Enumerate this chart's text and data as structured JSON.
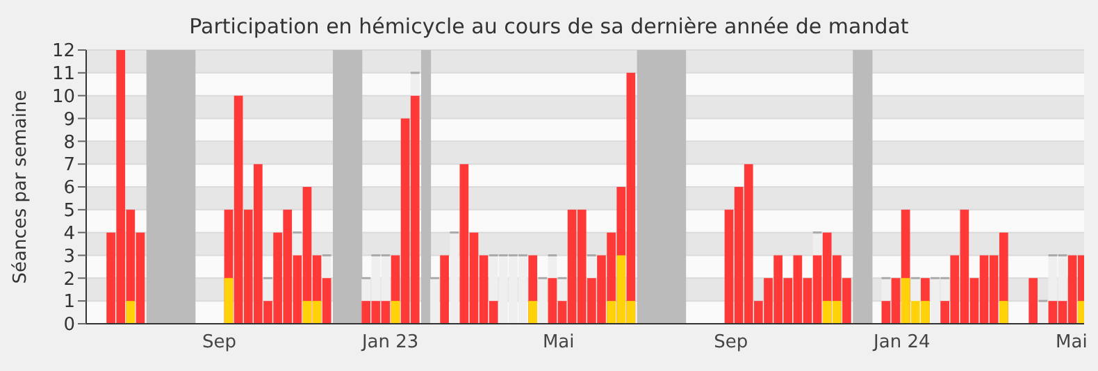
{
  "chart_data": {
    "type": "bar",
    "title": "Participation en hémicycle au cours de sa dernière année de mandat",
    "ylabel": "Séances par semaine",
    "x": [
      "2022-06-16",
      "2022-06-23",
      "2022-06-30",
      "2022-07-07",
      "2022-07-14",
      "2022-07-21",
      "2022-07-28",
      "2022-08-04",
      "2022-08-11",
      "2022-08-18",
      "2022-08-25",
      "2022-09-01",
      "2022-09-08",
      "2022-09-15",
      "2022-09-22",
      "2022-09-29",
      "2022-10-06",
      "2022-10-13",
      "2022-10-20",
      "2022-10-27",
      "2022-11-03",
      "2022-11-10",
      "2022-11-17",
      "2022-11-24",
      "2022-12-01",
      "2022-12-08",
      "2022-12-15",
      "2022-12-22",
      "2022-12-29",
      "2023-01-05",
      "2023-01-12",
      "2023-01-19",
      "2023-01-26",
      "2023-02-02",
      "2023-02-09",
      "2023-02-16",
      "2023-02-23",
      "2023-03-02",
      "2023-03-09",
      "2023-03-16",
      "2023-03-23",
      "2023-03-30",
      "2023-04-06",
      "2023-04-13",
      "2023-04-20",
      "2023-04-27",
      "2023-05-04",
      "2023-05-11",
      "2023-05-18",
      "2023-05-25",
      "2023-06-01",
      "2023-06-08",
      "2023-06-15",
      "2023-06-22",
      "2023-06-29",
      "2023-07-06",
      "2023-07-13",
      "2023-07-20",
      "2023-07-27",
      "2023-08-03",
      "2023-08-10",
      "2023-08-17",
      "2023-08-24",
      "2023-08-31",
      "2023-09-07",
      "2023-09-14",
      "2023-09-21",
      "2023-09-28",
      "2023-10-05",
      "2023-10-12",
      "2023-10-19",
      "2023-10-26",
      "2023-11-02",
      "2023-11-09",
      "2023-11-16",
      "2023-11-23",
      "2023-11-30",
      "2023-12-07",
      "2023-12-14",
      "2023-12-21",
      "2023-12-28",
      "2024-01-04",
      "2024-01-11",
      "2024-01-18",
      "2024-01-25",
      "2024-02-01",
      "2024-02-08",
      "2024-02-15",
      "2024-02-22",
      "2024-02-29",
      "2024-03-07",
      "2024-03-14",
      "2024-03-21",
      "2024-03-28",
      "2024-04-04",
      "2024-04-11",
      "2024-04-18",
      "2024-04-25",
      "2024-05-02",
      "2024-05-09"
    ],
    "series": [
      {
        "color": "#efefef",
        "values": [
          null,
          null,
          null,
          null,
          null,
          null,
          null,
          null,
          null,
          null,
          null,
          null,
          null,
          null,
          null,
          null,
          2,
          null,
          null,
          4,
          null,
          null,
          3,
          null,
          null,
          null,
          2,
          3,
          3,
          null,
          null,
          11,
          null,
          2,
          null,
          4,
          null,
          null,
          null,
          3,
          3,
          3,
          3,
          null,
          2,
          3,
          2,
          null,
          null,
          3,
          null,
          null,
          null,
          null,
          null,
          null,
          null,
          null,
          null,
          null,
          null,
          null,
          null,
          null,
          null,
          null,
          null,
          null,
          null,
          null,
          null,
          null,
          4,
          null,
          null,
          null,
          null,
          null,
          null,
          2,
          null,
          null,
          2,
          null,
          2,
          2,
          null,
          null,
          null,
          null,
          null,
          null,
          null,
          null,
          null,
          1,
          3,
          3,
          null,
          null
        ]
      },
      {
        "color": "#ff3838",
        "values": [
          4,
          12,
          5,
          4,
          null,
          null,
          null,
          null,
          null,
          null,
          null,
          null,
          5,
          10,
          5,
          7,
          1,
          4,
          5,
          3,
          6,
          3,
          2,
          null,
          null,
          null,
          1,
          1,
          1,
          3,
          9,
          10,
          null,
          null,
          3,
          null,
          7,
          4,
          3,
          1,
          null,
          null,
          null,
          3,
          null,
          2,
          1,
          5,
          5,
          2,
          3,
          4,
          6,
          11,
          null,
          null,
          null,
          null,
          null,
          null,
          null,
          null,
          null,
          5,
          6,
          7,
          1,
          2,
          3,
          2,
          3,
          2,
          3,
          4,
          3,
          2,
          null,
          null,
          null,
          1,
          2,
          5,
          null,
          2,
          null,
          1,
          3,
          5,
          2,
          3,
          3,
          4,
          null,
          null,
          2,
          null,
          1,
          1,
          3,
          3
        ]
      },
      {
        "color": "#ffd20a",
        "values": [
          null,
          null,
          1,
          null,
          null,
          null,
          null,
          null,
          null,
          null,
          null,
          null,
          2,
          null,
          null,
          null,
          null,
          null,
          null,
          null,
          1,
          1,
          null,
          null,
          null,
          null,
          null,
          null,
          null,
          1,
          null,
          null,
          null,
          null,
          null,
          null,
          null,
          null,
          null,
          null,
          null,
          null,
          null,
          1,
          null,
          null,
          null,
          null,
          null,
          null,
          null,
          1,
          3,
          1,
          null,
          null,
          null,
          null,
          null,
          null,
          null,
          null,
          null,
          null,
          null,
          null,
          null,
          null,
          null,
          null,
          null,
          null,
          null,
          1,
          1,
          null,
          null,
          null,
          null,
          null,
          null,
          2,
          1,
          1,
          null,
          null,
          null,
          null,
          null,
          null,
          null,
          1,
          null,
          null,
          null,
          null,
          null,
          null,
          null,
          1
        ]
      }
    ],
    "xlim": [
      "2022-05-29",
      "2024-05-10"
    ],
    "xticks": [
      {
        "value": "2022-09-01",
        "label": "Sep"
      },
      {
        "value": "2023-01-01",
        "label": "Jan 23"
      },
      {
        "value": "2023-05-01",
        "label": "Mai"
      },
      {
        "value": "2023-09-01",
        "label": "Sep"
      },
      {
        "value": "2024-01-01",
        "label": "Jan 24"
      },
      {
        "value": "2024-05-01",
        "label": "Mai"
      }
    ],
    "ylim": [
      0,
      12
    ],
    "yticks": [
      0,
      1,
      2,
      3,
      4,
      5,
      6,
      7,
      8,
      9,
      10,
      11,
      12
    ],
    "grid": "y",
    "bands": [
      {
        "axis": "x",
        "from": "2022-07-11",
        "to": "2022-08-15",
        "color": "#bbbbbb"
      },
      {
        "axis": "x",
        "from": "2022-11-21",
        "to": "2022-12-12",
        "color": "#bbbbbb"
      },
      {
        "axis": "x",
        "from": "2023-01-23",
        "to": "2023-01-30",
        "color": "#bbbbbb"
      },
      {
        "axis": "x",
        "from": "2023-06-26",
        "to": "2023-07-31",
        "color": "#bbbbbb"
      },
      {
        "axis": "x",
        "from": "2023-11-27",
        "to": "2023-12-11",
        "color": "#bbbbbb"
      }
    ]
  }
}
